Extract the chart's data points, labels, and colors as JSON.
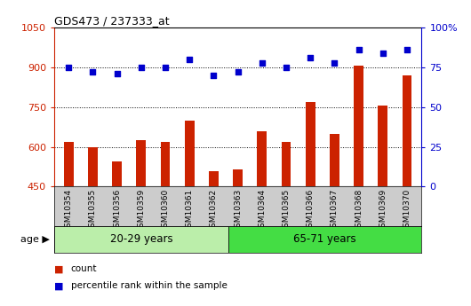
{
  "title": "GDS473 / 237333_at",
  "samples": [
    "GSM10354",
    "GSM10355",
    "GSM10356",
    "GSM10359",
    "GSM10360",
    "GSM10361",
    "GSM10362",
    "GSM10363",
    "GSM10364",
    "GSM10365",
    "GSM10366",
    "GSM10367",
    "GSM10368",
    "GSM10369",
    "GSM10370"
  ],
  "counts": [
    620,
    600,
    545,
    625,
    620,
    700,
    510,
    515,
    660,
    620,
    770,
    650,
    905,
    755,
    870
  ],
  "percentiles": [
    75,
    72,
    71,
    75,
    75,
    80,
    70,
    72,
    78,
    75,
    81,
    78,
    86,
    84,
    86
  ],
  "group1_label": "20-29 years",
  "group1_count": 7,
  "group2_label": "65-71 years",
  "group2_count": 8,
  "age_label": "age",
  "bar_color": "#cc2200",
  "dot_color": "#0000cc",
  "group1_bg": "#bbeeaa",
  "group2_bg": "#44dd44",
  "ylim_left": [
    450,
    1050
  ],
  "ylim_right": [
    0,
    100
  ],
  "yticks_left": [
    450,
    600,
    750,
    900,
    1050
  ],
  "yticks_right": [
    0,
    25,
    50,
    75,
    100
  ],
  "legend_count": "count",
  "legend_pct": "percentile rank within the sample",
  "bar_width": 0.4
}
